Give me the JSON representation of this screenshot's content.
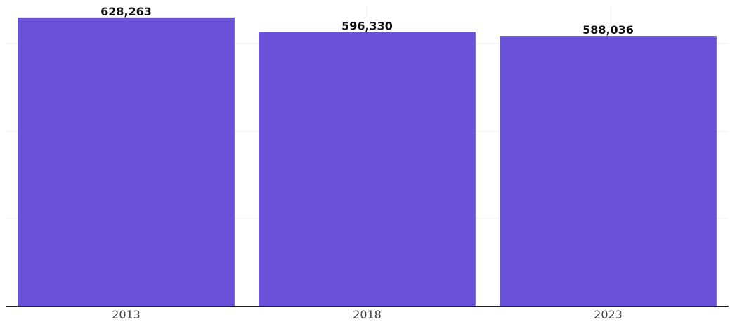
{
  "chart_data": {
    "type": "bar",
    "title": "",
    "xlabel": "",
    "ylabel": "",
    "categories": [
      "2013",
      "2018",
      "2023"
    ],
    "values": [
      628263,
      596330,
      588036
    ],
    "value_labels": [
      "628,263",
      "596,330",
      "588,036"
    ],
    "ylim": [
      0,
      700000
    ],
    "grid": true,
    "colors": {
      "bar": "#6952d8"
    }
  }
}
